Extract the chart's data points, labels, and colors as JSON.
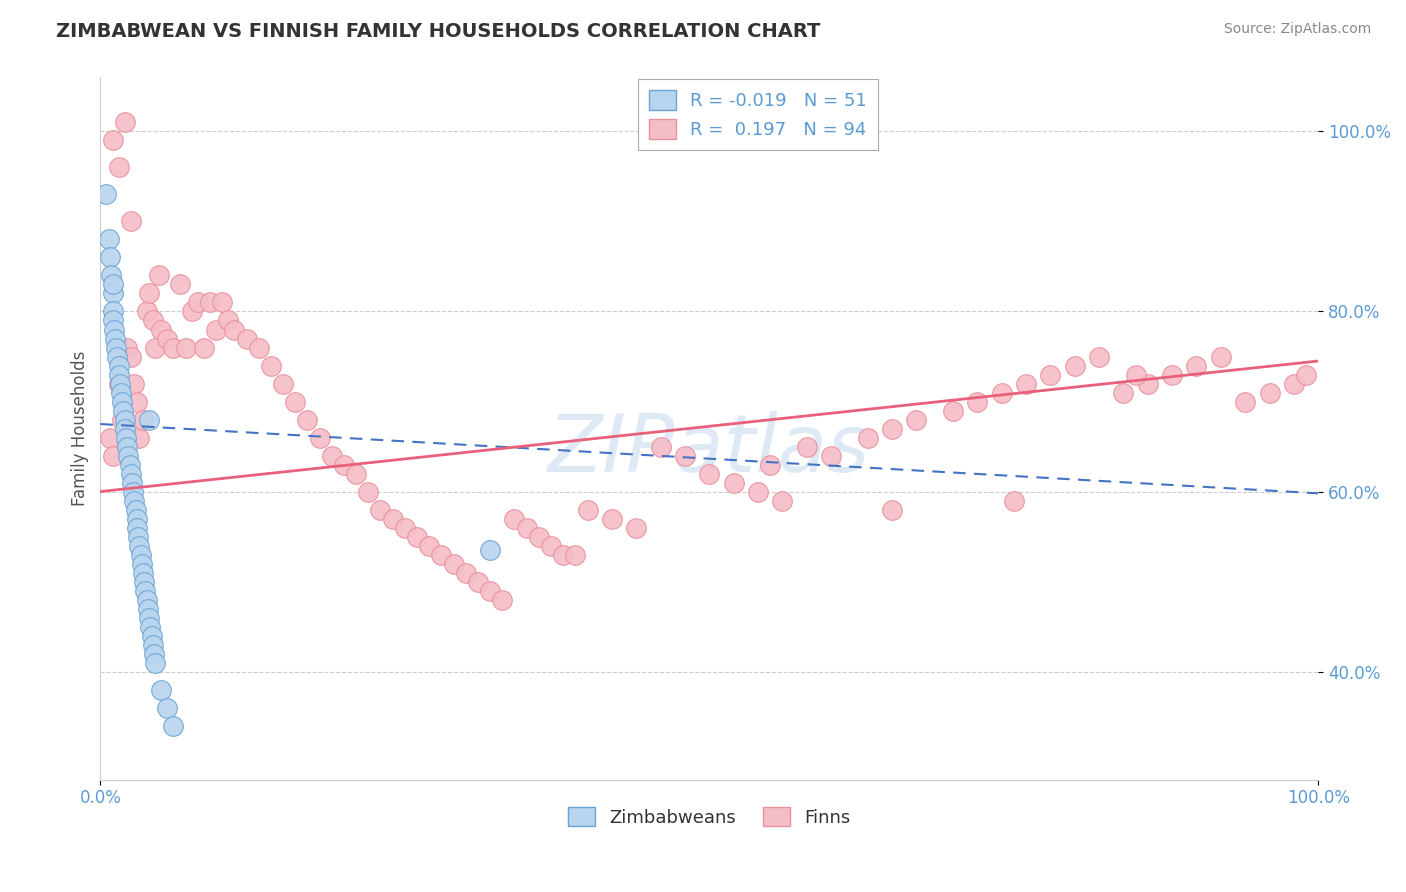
{
  "title": "ZIMBABWEAN VS FINNISH FAMILY HOUSEHOLDS CORRELATION CHART",
  "source": "Source: ZipAtlas.com",
  "ylabel": "Family Households",
  "legend_blue_label": "Zimbabweans",
  "legend_pink_label": "Finns",
  "blue_R": -0.019,
  "blue_N": 51,
  "pink_R": 0.197,
  "pink_N": 94,
  "blue_color": "#b8d4ee",
  "pink_color": "#f5bdc8",
  "blue_edge": "#6aa3d5",
  "pink_edge": "#e8909a",
  "blue_line_color": "#4472c4",
  "pink_line_color": "#e8607a",
  "watermark": "ZIPatlas",
  "xmin": 0.0,
  "xmax": 1.0,
  "ymin": 0.28,
  "ymax": 1.06,
  "yticks": [
    0.4,
    0.6,
    0.8,
    1.0
  ],
  "ytick_labels": [
    "40.0%",
    "60.0%",
    "80.0%",
    "100.0%"
  ],
  "blue_trend_x0": 0.0,
  "blue_trend_y0": 0.675,
  "blue_trend_x1": 1.0,
  "blue_trend_y1": 0.598,
  "pink_trend_x0": 0.0,
  "pink_trend_y0": 0.6,
  "pink_trend_x1": 1.0,
  "pink_trend_y1": 0.745,
  "blue_x": [
    0.005,
    0.007,
    0.008,
    0.009,
    0.01,
    0.01,
    0.01,
    0.011,
    0.012,
    0.013,
    0.014,
    0.015,
    0.015,
    0.016,
    0.017,
    0.018,
    0.019,
    0.02,
    0.02,
    0.021,
    0.022,
    0.023,
    0.024,
    0.025,
    0.026,
    0.027,
    0.028,
    0.029,
    0.03,
    0.03,
    0.031,
    0.032,
    0.033,
    0.034,
    0.035,
    0.036,
    0.037,
    0.038,
    0.039,
    0.04,
    0.041,
    0.042,
    0.043,
    0.044,
    0.045,
    0.05,
    0.055,
    0.06,
    0.32,
    0.04,
    0.01
  ],
  "blue_y": [
    0.93,
    0.88,
    0.86,
    0.84,
    0.82,
    0.8,
    0.79,
    0.78,
    0.77,
    0.76,
    0.75,
    0.74,
    0.73,
    0.72,
    0.71,
    0.7,
    0.69,
    0.68,
    0.67,
    0.66,
    0.65,
    0.64,
    0.63,
    0.62,
    0.61,
    0.6,
    0.59,
    0.58,
    0.57,
    0.56,
    0.55,
    0.54,
    0.53,
    0.52,
    0.51,
    0.5,
    0.49,
    0.48,
    0.47,
    0.46,
    0.45,
    0.44,
    0.43,
    0.42,
    0.41,
    0.38,
    0.36,
    0.34,
    0.535,
    0.68,
    0.83
  ],
  "pink_x": [
    0.008,
    0.01,
    0.015,
    0.018,
    0.022,
    0.025,
    0.028,
    0.03,
    0.032,
    0.035,
    0.038,
    0.04,
    0.043,
    0.045,
    0.048,
    0.05,
    0.055,
    0.06,
    0.065,
    0.07,
    0.075,
    0.08,
    0.085,
    0.09,
    0.095,
    0.1,
    0.105,
    0.11,
    0.12,
    0.13,
    0.14,
    0.15,
    0.16,
    0.17,
    0.18,
    0.19,
    0.2,
    0.21,
    0.22,
    0.23,
    0.24,
    0.25,
    0.26,
    0.27,
    0.28,
    0.29,
    0.3,
    0.31,
    0.32,
    0.33,
    0.34,
    0.35,
    0.36,
    0.37,
    0.38,
    0.39,
    0.4,
    0.42,
    0.44,
    0.46,
    0.48,
    0.5,
    0.52,
    0.54,
    0.56,
    0.58,
    0.6,
    0.63,
    0.65,
    0.67,
    0.7,
    0.72,
    0.74,
    0.76,
    0.78,
    0.8,
    0.82,
    0.84,
    0.86,
    0.88,
    0.9,
    0.92,
    0.94,
    0.96,
    0.98,
    0.99,
    0.01,
    0.015,
    0.02,
    0.025,
    0.55,
    0.65,
    0.75,
    0.85
  ],
  "pink_y": [
    0.66,
    0.64,
    0.72,
    0.68,
    0.76,
    0.75,
    0.72,
    0.7,
    0.66,
    0.68,
    0.8,
    0.82,
    0.79,
    0.76,
    0.84,
    0.78,
    0.77,
    0.76,
    0.83,
    0.76,
    0.8,
    0.81,
    0.76,
    0.81,
    0.78,
    0.81,
    0.79,
    0.78,
    0.77,
    0.76,
    0.74,
    0.72,
    0.7,
    0.68,
    0.66,
    0.64,
    0.63,
    0.62,
    0.6,
    0.58,
    0.57,
    0.56,
    0.55,
    0.54,
    0.53,
    0.52,
    0.51,
    0.5,
    0.49,
    0.48,
    0.57,
    0.56,
    0.55,
    0.54,
    0.53,
    0.53,
    0.58,
    0.57,
    0.56,
    0.65,
    0.64,
    0.62,
    0.61,
    0.6,
    0.59,
    0.65,
    0.64,
    0.66,
    0.67,
    0.68,
    0.69,
    0.7,
    0.71,
    0.72,
    0.73,
    0.74,
    0.75,
    0.71,
    0.72,
    0.73,
    0.74,
    0.75,
    0.7,
    0.71,
    0.72,
    0.73,
    0.99,
    0.96,
    1.01,
    0.9,
    0.63,
    0.58,
    0.59,
    0.73
  ]
}
